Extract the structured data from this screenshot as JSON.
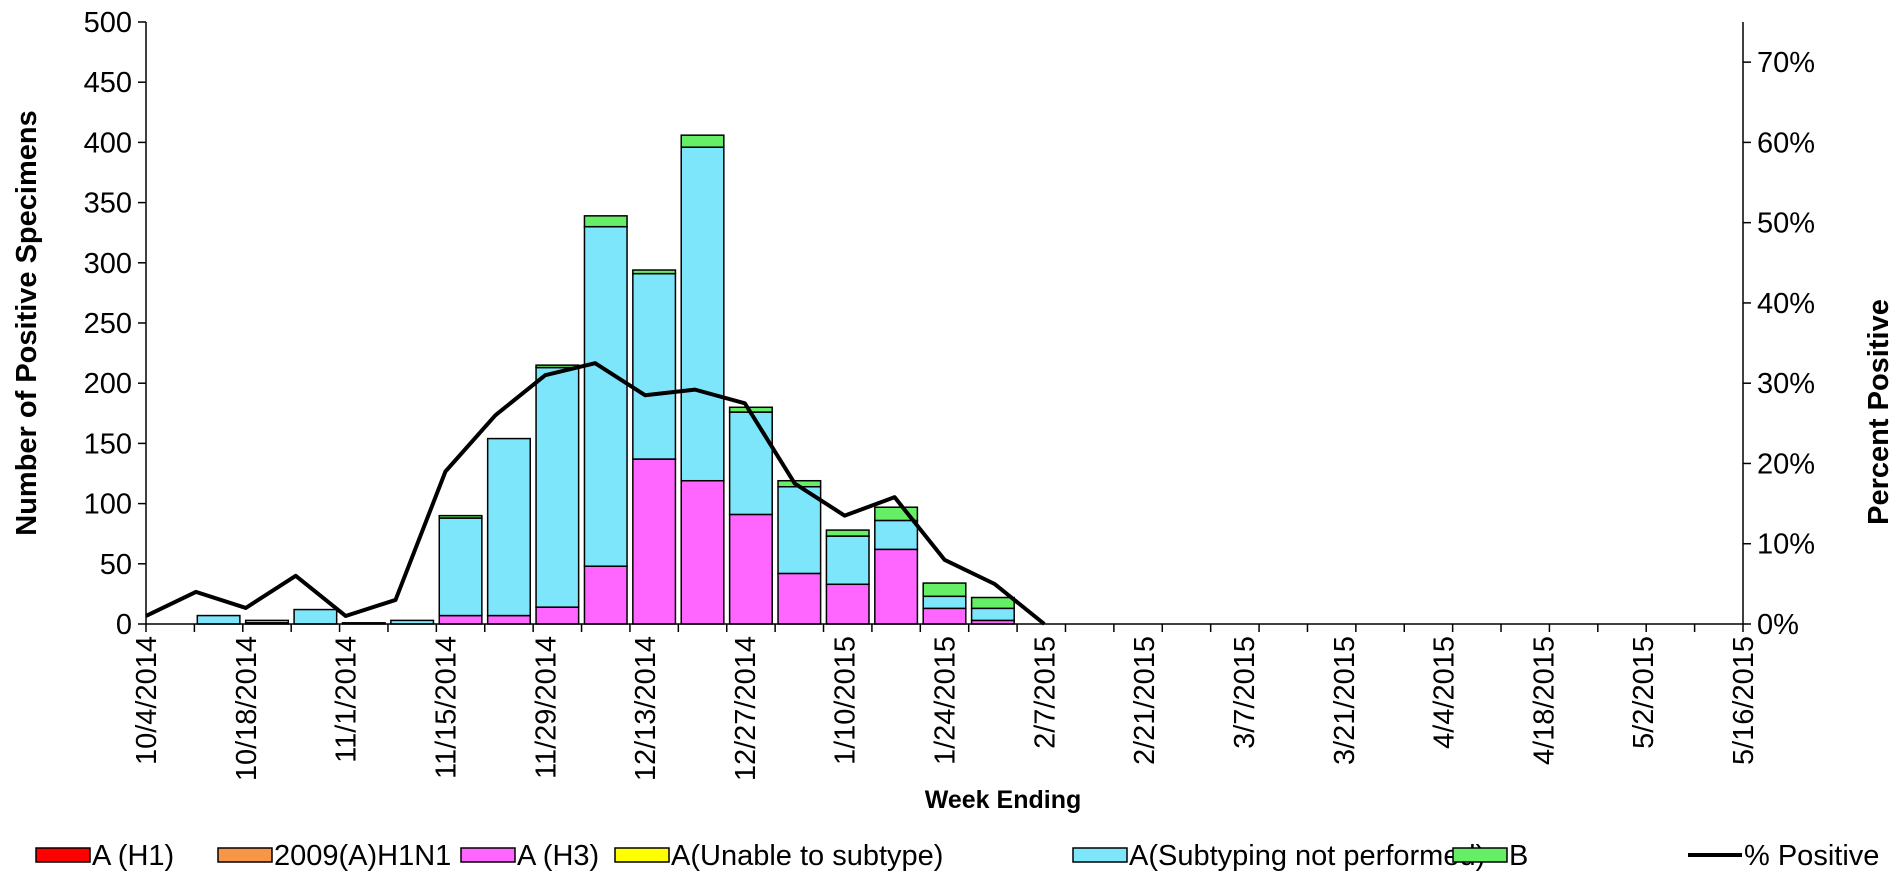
{
  "chart_data": {
    "type": "bar",
    "stacked": true,
    "x_label": "Week Ending",
    "y_label": "Number of  Positive Specimens",
    "y2_label": "Percent Positive",
    "categories": [
      "10/4/2014",
      null,
      "10/18/2014",
      null,
      "11/1/2014",
      null,
      "11/15/2014",
      null,
      "11/29/2014",
      null,
      "12/13/2014",
      null,
      "12/27/2014",
      null,
      "1/10/2015",
      null,
      "1/24/2015",
      null,
      "2/7/2015",
      null,
      "2/21/2015",
      null,
      "3/7/2015",
      null,
      "3/21/2015",
      null,
      "4/4/2015",
      null,
      "4/18/2015",
      null,
      "5/2/2015",
      null,
      "5/16/2015"
    ],
    "ylim": [
      0,
      500
    ],
    "yticks": [
      0,
      50,
      100,
      150,
      200,
      250,
      300,
      350,
      400,
      450,
      500
    ],
    "y2lim": [
      0,
      75
    ],
    "y2ticks": [
      {
        "value": 0,
        "label": "0%"
      },
      {
        "value": 10,
        "label": "10%"
      },
      {
        "value": 20,
        "label": "20%"
      },
      {
        "value": 30,
        "label": "30%"
      },
      {
        "value": 40,
        "label": "40%"
      },
      {
        "value": 50,
        "label": "50%"
      },
      {
        "value": 60,
        "label": "60%"
      },
      {
        "value": 70,
        "label": "70%"
      }
    ],
    "series": [
      {
        "name": "A (H1)",
        "color": "#ff0000",
        "values": [
          0,
          0,
          0,
          0,
          0,
          0,
          0,
          0,
          0,
          0,
          0,
          0,
          0,
          0,
          0,
          0,
          0,
          0,
          0,
          0,
          0,
          0,
          0,
          0,
          0,
          0,
          0,
          0,
          0,
          0,
          0,
          0,
          0
        ]
      },
      {
        "name": "2009(A)H1N1",
        "color": "#f79646",
        "values": [
          0,
          0,
          0,
          0,
          0,
          0,
          0,
          0,
          0,
          0,
          0,
          0,
          0,
          0,
          0,
          0,
          0,
          0,
          0,
          0,
          0,
          0,
          0,
          0,
          0,
          0,
          0,
          0,
          0,
          0,
          0,
          0,
          0
        ]
      },
      {
        "name": "A (H3)",
        "color": "#ff66ff",
        "values": [
          0,
          0,
          1,
          0,
          0,
          0,
          7,
          7,
          14,
          48,
          137,
          119,
          91,
          42,
          33,
          62,
          13,
          3,
          0,
          0,
          0,
          0,
          0,
          0,
          0,
          0,
          0,
          0,
          0,
          0,
          0,
          0,
          0
        ]
      },
      {
        "name": "A(Unable to subtype)",
        "color": "#ffff00",
        "values": [
          0,
          0,
          0,
          0,
          0,
          0,
          0,
          0,
          0,
          0,
          0,
          0,
          0,
          0,
          0,
          0,
          0,
          0,
          0,
          0,
          0,
          0,
          0,
          0,
          0,
          0,
          0,
          0,
          0,
          0,
          0,
          0,
          0
        ]
      },
      {
        "name": "A(Subtyping not performed)",
        "color": "#7ee6fa",
        "values": [
          0,
          7,
          2,
          12,
          1,
          3,
          81,
          147,
          199,
          282,
          154,
          277,
          85,
          72,
          40,
          24,
          10,
          10,
          0,
          0,
          0,
          0,
          0,
          0,
          0,
          0,
          0,
          0,
          0,
          0,
          0,
          0,
          0
        ]
      },
      {
        "name": "B",
        "color": "#66ee66",
        "values": [
          0,
          0,
          0,
          0,
          0,
          0,
          2,
          0,
          2,
          9,
          3,
          10,
          4,
          5,
          5,
          11,
          11,
          9,
          0,
          0,
          0,
          0,
          0,
          0,
          0,
          0,
          0,
          0,
          0,
          0,
          0,
          0,
          0
        ]
      },
      {
        "name": "% Positive",
        "type": "line",
        "axis": "y2",
        "color": "#000000",
        "values": [
          1,
          4,
          2,
          6,
          1,
          3,
          19,
          26,
          31,
          32.5,
          28.5,
          29.2,
          27.5,
          17.5,
          13.5,
          15.8,
          8,
          5,
          0,
          null,
          null,
          null,
          null,
          null,
          null,
          null,
          null,
          null,
          null,
          null,
          null,
          null,
          null
        ]
      }
    ]
  }
}
